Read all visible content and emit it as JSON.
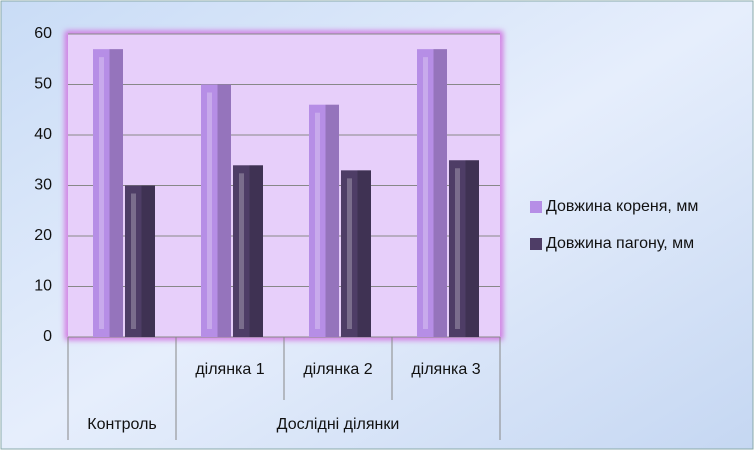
{
  "chart_data": {
    "type": "bar",
    "groups": [
      {
        "name": "Контроль",
        "categories": [
          null
        ]
      },
      {
        "name": "Дослідні ділянки",
        "categories": [
          "ділянка 1",
          "ділянка 2",
          "ділянка 3"
        ]
      }
    ],
    "series": [
      {
        "name": "Довжина кореня, мм",
        "color": "#b68ee6",
        "values": [
          57,
          50,
          46,
          57
        ]
      },
      {
        "name": "Довжина пагону, мм",
        "color": "#4e3d66",
        "values": [
          30,
          34,
          33,
          35
        ]
      }
    ],
    "ylim": [
      0,
      60
    ],
    "yticks": [
      0,
      10,
      20,
      30,
      40,
      50,
      60
    ],
    "grid": true,
    "legend": "right"
  }
}
